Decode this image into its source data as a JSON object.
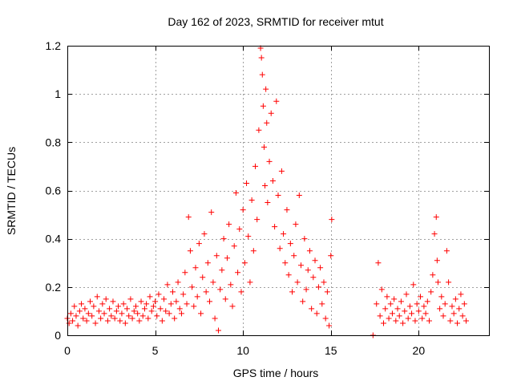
{
  "chart_data": {
    "type": "scatter",
    "title": "Day 162 of 2023, SRMTID for receiver mtut",
    "xlabel": "GPS time / hours",
    "ylabel": "SRMTID / TECUs",
    "xlim": [
      0,
      24
    ],
    "ylim": [
      0,
      1.2
    ],
    "xticks": [
      0,
      5,
      10,
      15,
      20
    ],
    "xtick_labels": [
      "0",
      "5",
      "10",
      "15",
      "20"
    ],
    "yticks": [
      0,
      0.2,
      0.4,
      0.6,
      0.8,
      1.0,
      1.2
    ],
    "ytick_labels": [
      "0",
      "0.2",
      "0.4",
      "0.6",
      "0.8",
      "1",
      "1.2"
    ],
    "grid": true,
    "marker": "+",
    "color": "#ff0000",
    "series": [
      {
        "name": "SRMTID",
        "points": [
          [
            0.0,
            0.07
          ],
          [
            0.1,
            0.05
          ],
          [
            0.2,
            0.09
          ],
          [
            0.3,
            0.06
          ],
          [
            0.4,
            0.12
          ],
          [
            0.5,
            0.08
          ],
          [
            0.6,
            0.04
          ],
          [
            0.7,
            0.1
          ],
          [
            0.8,
            0.13
          ],
          [
            0.9,
            0.07
          ],
          [
            1.0,
            0.11
          ],
          [
            1.1,
            0.06
          ],
          [
            1.2,
            0.09
          ],
          [
            1.3,
            0.14
          ],
          [
            1.4,
            0.08
          ],
          [
            1.5,
            0.12
          ],
          [
            1.6,
            0.05
          ],
          [
            1.7,
            0.16
          ],
          [
            1.8,
            0.1
          ],
          [
            1.9,
            0.07
          ],
          [
            2.0,
            0.13
          ],
          [
            2.1,
            0.09
          ],
          [
            2.2,
            0.15
          ],
          [
            2.3,
            0.06
          ],
          [
            2.4,
            0.11
          ],
          [
            2.5,
            0.08
          ],
          [
            2.6,
            0.14
          ],
          [
            2.7,
            0.07
          ],
          [
            2.8,
            0.1
          ],
          [
            2.9,
            0.12
          ],
          [
            3.0,
            0.06
          ],
          [
            3.1,
            0.09
          ],
          [
            3.2,
            0.13
          ],
          [
            3.3,
            0.05
          ],
          [
            3.4,
            0.11
          ],
          [
            3.5,
            0.08
          ],
          [
            3.6,
            0.15
          ],
          [
            3.7,
            0.07
          ],
          [
            3.8,
            0.1
          ],
          [
            3.9,
            0.12
          ],
          [
            4.0,
            0.09
          ],
          [
            4.1,
            0.06
          ],
          [
            4.2,
            0.14
          ],
          [
            4.3,
            0.08
          ],
          [
            4.4,
            0.11
          ],
          [
            4.5,
            0.13
          ],
          [
            4.6,
            0.07
          ],
          [
            4.7,
            0.16
          ],
          [
            4.8,
            0.1
          ],
          [
            4.9,
            0.12
          ],
          [
            5.0,
            0.14
          ],
          [
            5.1,
            0.08
          ],
          [
            5.2,
            0.17
          ],
          [
            5.3,
            0.11
          ],
          [
            5.4,
            0.06
          ],
          [
            5.5,
            0.15
          ],
          [
            5.6,
            0.1
          ],
          [
            5.7,
            0.21
          ],
          [
            5.8,
            0.09
          ],
          [
            5.9,
            0.13
          ],
          [
            6.0,
            0.18
          ],
          [
            6.1,
            0.07
          ],
          [
            6.2,
            0.14
          ],
          [
            6.3,
            0.22
          ],
          [
            6.4,
            0.11
          ],
          [
            6.5,
            0.09
          ],
          [
            6.6,
            0.17
          ],
          [
            6.7,
            0.26
          ],
          [
            6.8,
            0.13
          ],
          [
            6.9,
            0.49
          ],
          [
            7.0,
            0.35
          ],
          [
            7.1,
            0.2
          ],
          [
            7.2,
            0.12
          ],
          [
            7.3,
            0.28
          ],
          [
            7.4,
            0.16
          ],
          [
            7.5,
            0.38
          ],
          [
            7.6,
            0.09
          ],
          [
            7.7,
            0.24
          ],
          [
            7.8,
            0.42
          ],
          [
            7.9,
            0.18
          ],
          [
            8.0,
            0.3
          ],
          [
            8.1,
            0.14
          ],
          [
            8.2,
            0.51
          ],
          [
            8.3,
            0.22
          ],
          [
            8.4,
            0.07
          ],
          [
            8.5,
            0.33
          ],
          [
            8.6,
            0.02
          ],
          [
            8.7,
            0.19
          ],
          [
            8.8,
            0.27
          ],
          [
            8.9,
            0.4
          ],
          [
            9.0,
            0.15
          ],
          [
            9.1,
            0.32
          ],
          [
            9.2,
            0.46
          ],
          [
            9.3,
            0.21
          ],
          [
            9.4,
            0.12
          ],
          [
            9.5,
            0.37
          ],
          [
            9.6,
            0.59
          ],
          [
            9.7,
            0.26
          ],
          [
            9.8,
            0.44
          ],
          [
            9.9,
            0.18
          ],
          [
            10.0,
            0.52
          ],
          [
            10.1,
            0.3
          ],
          [
            10.2,
            0.63
          ],
          [
            10.3,
            0.41
          ],
          [
            10.4,
            0.22
          ],
          [
            10.5,
            0.56
          ],
          [
            10.6,
            0.35
          ],
          [
            10.7,
            0.7
          ],
          [
            10.8,
            0.48
          ],
          [
            10.9,
            0.85
          ],
          [
            11.0,
            1.19
          ],
          [
            11.05,
            1.15
          ],
          [
            11.1,
            1.08
          ],
          [
            11.15,
            0.95
          ],
          [
            11.2,
            0.78
          ],
          [
            11.25,
            0.62
          ],
          [
            11.3,
            1.02
          ],
          [
            11.35,
            0.88
          ],
          [
            11.4,
            0.55
          ],
          [
            11.5,
            0.72
          ],
          [
            11.6,
            0.92
          ],
          [
            11.7,
            0.64
          ],
          [
            11.8,
            0.45
          ],
          [
            11.9,
            0.97
          ],
          [
            12.0,
            0.58
          ],
          [
            12.1,
            0.36
          ],
          [
            12.2,
            0.68
          ],
          [
            12.3,
            0.42
          ],
          [
            12.4,
            0.3
          ],
          [
            12.5,
            0.52
          ],
          [
            12.6,
            0.25
          ],
          [
            12.7,
            0.38
          ],
          [
            12.8,
            0.18
          ],
          [
            12.9,
            0.33
          ],
          [
            13.0,
            0.46
          ],
          [
            13.1,
            0.22
          ],
          [
            13.2,
            0.58
          ],
          [
            13.3,
            0.29
          ],
          [
            13.4,
            0.14
          ],
          [
            13.5,
            0.4
          ],
          [
            13.6,
            0.19
          ],
          [
            13.7,
            0.27
          ],
          [
            13.8,
            0.35
          ],
          [
            13.9,
            0.11
          ],
          [
            14.0,
            0.24
          ],
          [
            14.1,
            0.31
          ],
          [
            14.2,
            0.09
          ],
          [
            14.3,
            0.2
          ],
          [
            14.4,
            0.28
          ],
          [
            14.5,
            0.13
          ],
          [
            14.6,
            0.22
          ],
          [
            14.7,
            0.07
          ],
          [
            14.8,
            0.18
          ],
          [
            14.9,
            0.04
          ],
          [
            15.0,
            0.33
          ],
          [
            15.05,
            0.48
          ],
          [
            17.4,
            0.0
          ],
          [
            17.6,
            0.13
          ],
          [
            17.7,
            0.3
          ],
          [
            17.8,
            0.08
          ],
          [
            17.9,
            0.19
          ],
          [
            18.0,
            0.05
          ],
          [
            18.1,
            0.11
          ],
          [
            18.2,
            0.16
          ],
          [
            18.3,
            0.07
          ],
          [
            18.4,
            0.13
          ],
          [
            18.5,
            0.09
          ],
          [
            18.6,
            0.15
          ],
          [
            18.7,
            0.06
          ],
          [
            18.8,
            0.11
          ],
          [
            18.9,
            0.08
          ],
          [
            19.0,
            0.14
          ],
          [
            19.1,
            0.05
          ],
          [
            19.2,
            0.1
          ],
          [
            19.3,
            0.17
          ],
          [
            19.4,
            0.07
          ],
          [
            19.5,
            0.12
          ],
          [
            19.6,
            0.09
          ],
          [
            19.7,
            0.21
          ],
          [
            19.8,
            0.06
          ],
          [
            19.9,
            0.13
          ],
          [
            20.0,
            0.1
          ],
          [
            20.1,
            0.16
          ],
          [
            20.2,
            0.07
          ],
          [
            20.3,
            0.12
          ],
          [
            20.4,
            0.09
          ],
          [
            20.5,
            0.14
          ],
          [
            20.6,
            0.06
          ],
          [
            20.7,
            0.18
          ],
          [
            20.8,
            0.25
          ],
          [
            20.9,
            0.42
          ],
          [
            21.0,
            0.49
          ],
          [
            21.05,
            0.31
          ],
          [
            21.1,
            0.22
          ],
          [
            21.2,
            0.11
          ],
          [
            21.3,
            0.16
          ],
          [
            21.4,
            0.08
          ],
          [
            21.5,
            0.13
          ],
          [
            21.6,
            0.35
          ],
          [
            21.7,
            0.22
          ],
          [
            21.8,
            0.06
          ],
          [
            21.9,
            0.12
          ],
          [
            22.0,
            0.09
          ],
          [
            22.1,
            0.15
          ],
          [
            22.2,
            0.05
          ],
          [
            22.3,
            0.11
          ],
          [
            22.4,
            0.17
          ],
          [
            22.5,
            0.08
          ],
          [
            22.6,
            0.13
          ],
          [
            22.7,
            0.06
          ]
        ]
      }
    ]
  }
}
